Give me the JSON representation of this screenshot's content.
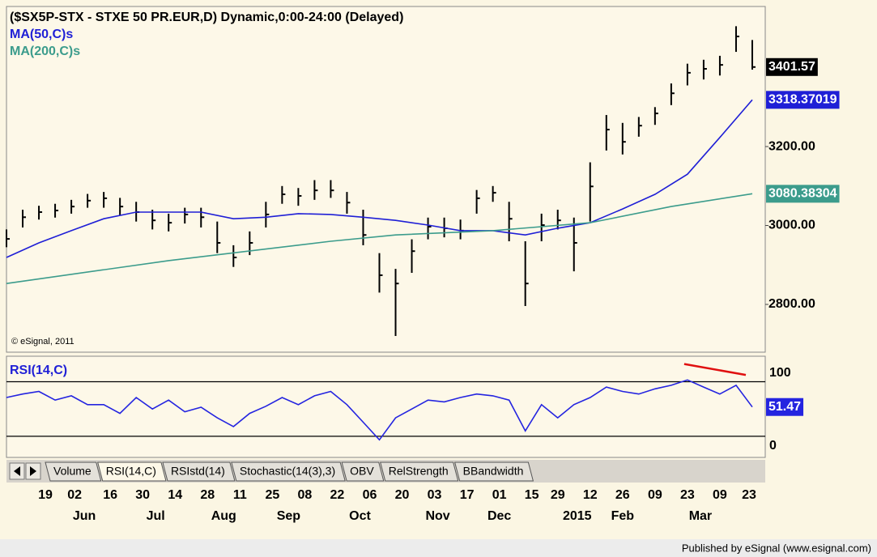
{
  "chart_data": [
    {
      "type": "ohlc",
      "title": "($SX5P-STX - STXE 50 PR.EUR,D) Dynamic,0:00-24:00 (Delayed)",
      "watermark": "© eSignal, 2011",
      "xlim": [
        0,
        234
      ],
      "ylim": [
        2679,
        3555
      ],
      "yticks": [
        {
          "value": 3200,
          "label": "3200.00"
        },
        {
          "value": 3000,
          "label": "3000.00"
        },
        {
          "value": 2800,
          "label": "2800.00"
        }
      ],
      "ohlc": {
        "color": "#000000",
        "x": [
          0,
          5,
          10,
          15,
          20,
          25,
          30,
          35,
          40,
          45,
          50,
          55,
          60,
          65,
          70,
          75,
          80,
          85,
          90,
          95,
          100,
          105,
          110,
          115,
          120,
          125,
          130,
          135,
          140,
          145,
          150,
          155,
          160,
          165,
          170,
          175,
          180,
          185,
          190,
          195,
          200,
          205,
          210,
          215,
          220,
          225,
          230
        ],
        "high": [
          2990,
          3040,
          3050,
          3055,
          3065,
          3080,
          3085,
          3070,
          3060,
          3040,
          3030,
          3045,
          3045,
          3010,
          2950,
          2985,
          3060,
          3100,
          3095,
          3115,
          3115,
          3085,
          3040,
          2930,
          2890,
          2965,
          3020,
          3020,
          3015,
          3090,
          3100,
          3060,
          2960,
          3030,
          3040,
          3020,
          3160,
          3280,
          3260,
          3275,
          3300,
          3360,
          3410,
          3420,
          3430,
          3505,
          3470
        ],
        "low": [
          2945,
          2995,
          3015,
          3020,
          3030,
          3045,
          3045,
          3025,
          3010,
          2990,
          2985,
          3005,
          2995,
          2930,
          2895,
          2925,
          2995,
          3055,
          3050,
          3065,
          3070,
          3030,
          2950,
          2830,
          2720,
          2880,
          2965,
          2970,
          2965,
          3030,
          3060,
          2960,
          2796,
          2960,
          2990,
          2884,
          3010,
          3190,
          3180,
          3225,
          3255,
          3305,
          3355,
          3370,
          3380,
          3440,
          3395
        ],
        "close": [
          2966,
          3021,
          3034,
          3038,
          3048,
          3063,
          3069,
          3048,
          3034,
          3013,
          3007,
          3028,
          3021,
          2956,
          2919,
          2956,
          3028,
          3079,
          3075,
          3089,
          3089,
          3058,
          2976,
          2874,
          2853,
          2935,
          2997,
          2993,
          2987,
          3069,
          3083,
          3017,
          2853,
          3001,
          3013,
          2956,
          3099,
          3243,
          3212,
          3253,
          3284,
          3335,
          3387,
          3397,
          3407,
          3479,
          3401.57
        ]
      },
      "series": [
        {
          "name": "MA(50,C)s",
          "color": "#1f1fd6",
          "x": [
            0,
            10,
            20,
            30,
            40,
            50,
            60,
            70,
            80,
            90,
            100,
            110,
            120,
            130,
            140,
            150,
            160,
            170,
            180,
            190,
            200,
            210,
            220,
            230
          ],
          "values": [
            2919,
            2956,
            2987,
            3017,
            3034,
            3034,
            3034,
            3017,
            3021,
            3030,
            3028,
            3021,
            3013,
            3001,
            2987,
            2987,
            2976,
            2993,
            3007,
            3042,
            3079,
            3130,
            3223,
            3318.37019
          ]
        },
        {
          "name": "MA(200,C)s",
          "color": "#3c9c8c",
          "x": [
            0,
            50,
            100,
            120,
            150,
            180,
            205,
            230
          ],
          "values": [
            2853,
            2911,
            2960,
            2976,
            2987,
            3007,
            3048,
            3080.38304
          ]
        }
      ]
    },
    {
      "type": "line",
      "title": "RSI(14,C)",
      "xlim": [
        0,
        234
      ],
      "ylim": [
        14.5,
        88.7
      ],
      "scale_labels": [
        "100",
        "0"
      ],
      "levels": [
        70,
        30
      ],
      "series": [
        {
          "name": "RSI(14,C)",
          "color": "#2424e0",
          "x": [
            0,
            5,
            10,
            15,
            20,
            25,
            30,
            35,
            40,
            45,
            50,
            55,
            60,
            65,
            70,
            75,
            80,
            85,
            90,
            95,
            100,
            105,
            110,
            115,
            120,
            125,
            130,
            135,
            140,
            145,
            150,
            155,
            160,
            165,
            170,
            175,
            180,
            185,
            190,
            195,
            200,
            205,
            210,
            215,
            220,
            225,
            230
          ],
          "values": [
            58.4,
            61,
            62.9,
            56.5,
            59.7,
            53.2,
            53.2,
            46.8,
            58.4,
            50,
            56.5,
            48,
            51.3,
            43.5,
            37.1,
            46.8,
            52,
            58.4,
            53.2,
            59.7,
            62.9,
            53.2,
            40.3,
            27.4,
            43.5,
            50,
            56.5,
            55.2,
            58.4,
            61,
            59.7,
            56.5,
            33.9,
            53.2,
            43.5,
            53.2,
            58.4,
            66.1,
            62.9,
            61,
            64.8,
            67.4,
            71.3,
            66.1,
            61,
            67.4,
            51.47
          ]
        }
      ],
      "trendline": {
        "color": "#e01010",
        "x": [
          209,
          228
        ],
        "values": [
          83,
          75
        ]
      },
      "xticks": [
        {
          "value": 12,
          "label": "19"
        },
        {
          "value": 21,
          "label": "02"
        },
        {
          "value": 32,
          "label": "16"
        },
        {
          "value": 42,
          "label": "30"
        },
        {
          "value": 52,
          "label": "14"
        },
        {
          "value": 62,
          "label": "28"
        },
        {
          "value": 72,
          "label": "11"
        },
        {
          "value": 82,
          "label": "25"
        },
        {
          "value": 92,
          "label": "08"
        },
        {
          "value": 102,
          "label": "22"
        },
        {
          "value": 112,
          "label": "06"
        },
        {
          "value": 122,
          "label": "20"
        },
        {
          "value": 132,
          "label": "03"
        },
        {
          "value": 142,
          "label": "17"
        },
        {
          "value": 152,
          "label": "01"
        },
        {
          "value": 162,
          "label": "15"
        },
        {
          "value": 170,
          "label": "29"
        },
        {
          "value": 180,
          "label": "12"
        },
        {
          "value": 190,
          "label": "26"
        },
        {
          "value": 200,
          "label": "09"
        },
        {
          "value": 210,
          "label": "23"
        },
        {
          "value": 220,
          "label": "09"
        },
        {
          "value": 229,
          "label": "23"
        }
      ],
      "month_ticks": [
        {
          "value": 24,
          "label": "Jun"
        },
        {
          "value": 46,
          "label": "Jul"
        },
        {
          "value": 67,
          "label": "Aug"
        },
        {
          "value": 87,
          "label": "Sep"
        },
        {
          "value": 109,
          "label": "Oct"
        },
        {
          "value": 133,
          "label": "Nov"
        },
        {
          "value": 152,
          "label": "Dec"
        },
        {
          "value": 176,
          "label": "2015"
        },
        {
          "value": 190,
          "label": "Feb"
        },
        {
          "value": 214,
          "label": "Mar"
        }
      ]
    }
  ],
  "tabs": [
    "Volume",
    "RSI(14,C)",
    "RSIstd(14)",
    "Stochastic(14(3),3)",
    "OBV",
    "RelStrength",
    "BBandwidth"
  ],
  "footer": "Published by eSignal (www.esignal.com)"
}
